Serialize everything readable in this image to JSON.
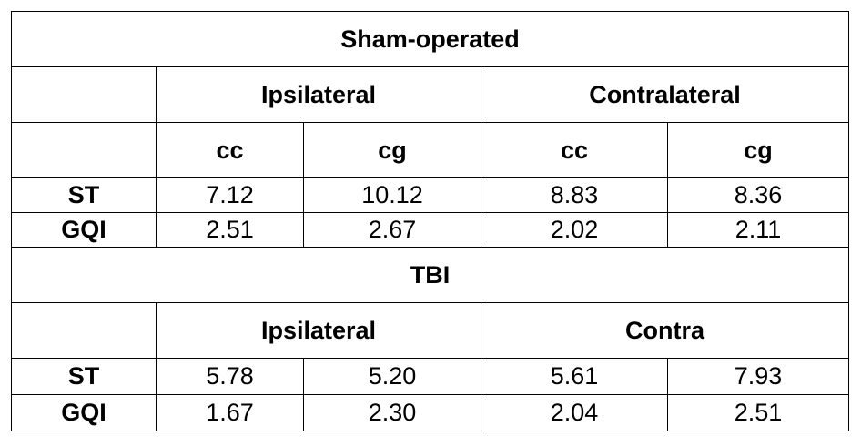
{
  "sections": [
    {
      "title": "Sham-operated",
      "groups": [
        "Ipsilateral",
        "Contralateral"
      ],
      "subheaders": [
        "cc",
        "cg",
        "cc",
        "cg"
      ],
      "rows": [
        {
          "label": "ST",
          "values": [
            "7.12",
            "10.12",
            "8.83",
            "8.36"
          ]
        },
        {
          "label": "GQI",
          "values": [
            "2.51",
            "2.67",
            "2.02",
            "2.11"
          ]
        }
      ]
    },
    {
      "title": "TBI",
      "groups": [
        "Ipsilateral",
        "Contra"
      ],
      "rows": [
        {
          "label": "ST",
          "values": [
            "5.78",
            "5.20",
            "5.61",
            "7.93"
          ]
        },
        {
          "label": "GQI",
          "values": [
            "1.67",
            "2.30",
            "2.04",
            "2.51"
          ]
        }
      ]
    }
  ]
}
